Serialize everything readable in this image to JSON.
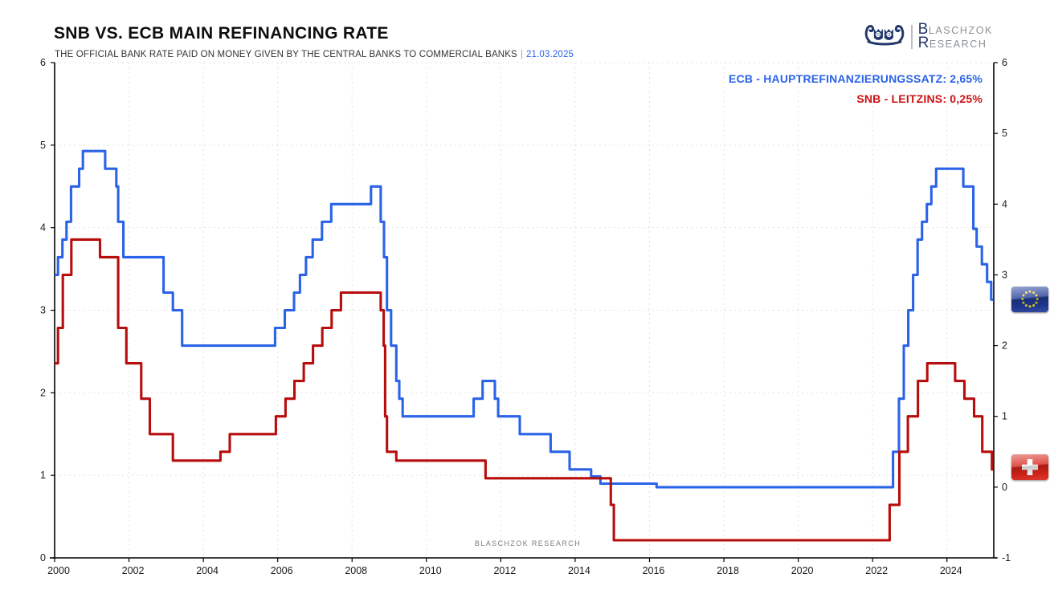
{
  "header": {
    "title": "SNB VS. ECB MAIN REFINANCING RATE",
    "subtitle": "THE OFFICIAL BANK RATE PAID ON MONEY GIVEN BY THE CENTRAL BANKS TO COMMERCIAL BANKS",
    "separator": "|",
    "date": "21.03.2025"
  },
  "logo": {
    "icon": "owl-ship-logo-icon",
    "line1_initial": "B",
    "line1_rest": "LASCHZOK",
    "line2_initial": "R",
    "line2_rest": "ESEARCH",
    "navy": "#21386b",
    "gray": "#8b9095"
  },
  "legend": {
    "ecb_label": "ECB - HAUPTREFINANZIERUNGSSATZ: 2,65%",
    "snb_label": "SNB - LEITZINS: 0,25%"
  },
  "watermark": "BLASCHZOK RESEARCH",
  "flags": {
    "eu": {
      "icon": "eu-flag-icon",
      "at_value": 2.65
    },
    "ch": {
      "icon": "swiss-flag-icon",
      "at_value": 0.25
    }
  },
  "chart_data": {
    "type": "line",
    "title": "SNB vs. ECB main refinancing rate (step chart, % p.a.)",
    "x_range": [
      2000,
      2025.25
    ],
    "x_ticks": [
      2000,
      2002,
      2004,
      2006,
      2008,
      2010,
      2012,
      2014,
      2016,
      2018,
      2020,
      2022,
      2024
    ],
    "left_axis": {
      "range": [
        0,
        6
      ],
      "ticks": [
        0,
        1,
        2,
        3,
        4,
        5,
        6
      ]
    },
    "right_axis": {
      "range": [
        -1,
        6
      ],
      "ticks": [
        -1,
        0,
        1,
        2,
        3,
        4,
        5,
        6
      ]
    },
    "grid": true,
    "grid_color": "#e2e2e2",
    "axis_color": "#000000",
    "tick_label_color": "#1a1a1a",
    "series": [
      {
        "id": "ecb",
        "name": "ECB - Hauptrefinanzierungssatz",
        "current_value": "2,65%",
        "color": "#2a63e8",
        "legend_color": "#2a63e8",
        "step_points": [
          [
            2000.0,
            3.0
          ],
          [
            2000.09,
            3.25
          ],
          [
            2000.21,
            3.5
          ],
          [
            2000.32,
            3.75
          ],
          [
            2000.44,
            4.25
          ],
          [
            2000.66,
            4.5
          ],
          [
            2000.76,
            4.75
          ],
          [
            2001.36,
            4.5
          ],
          [
            2001.66,
            4.25
          ],
          [
            2001.71,
            3.75
          ],
          [
            2001.85,
            3.25
          ],
          [
            2002.93,
            2.75
          ],
          [
            2003.18,
            2.5
          ],
          [
            2003.43,
            2.0
          ],
          [
            2005.93,
            2.25
          ],
          [
            2006.19,
            2.5
          ],
          [
            2006.44,
            2.75
          ],
          [
            2006.6,
            3.0
          ],
          [
            2006.76,
            3.25
          ],
          [
            2006.94,
            3.5
          ],
          [
            2007.19,
            3.75
          ],
          [
            2007.44,
            4.0
          ],
          [
            2008.51,
            4.25
          ],
          [
            2008.77,
            3.75
          ],
          [
            2008.86,
            3.25
          ],
          [
            2008.94,
            2.5
          ],
          [
            2009.05,
            2.0
          ],
          [
            2009.19,
            1.5
          ],
          [
            2009.27,
            1.25
          ],
          [
            2009.36,
            1.0
          ],
          [
            2011.27,
            1.25
          ],
          [
            2011.51,
            1.5
          ],
          [
            2011.84,
            1.25
          ],
          [
            2011.93,
            1.0
          ],
          [
            2012.51,
            0.75
          ],
          [
            2013.34,
            0.5
          ],
          [
            2013.85,
            0.25
          ],
          [
            2014.43,
            0.15
          ],
          [
            2014.68,
            0.05
          ],
          [
            2016.19,
            0.0
          ],
          [
            2022.55,
            0.5
          ],
          [
            2022.71,
            1.25
          ],
          [
            2022.84,
            2.0
          ],
          [
            2022.96,
            2.5
          ],
          [
            2023.09,
            3.0
          ],
          [
            2023.21,
            3.5
          ],
          [
            2023.33,
            3.75
          ],
          [
            2023.46,
            4.0
          ],
          [
            2023.58,
            4.25
          ],
          [
            2023.71,
            4.5
          ],
          [
            2024.44,
            4.25
          ],
          [
            2024.71,
            3.65
          ],
          [
            2024.8,
            3.4
          ],
          [
            2024.94,
            3.15
          ],
          [
            2025.08,
            2.9
          ],
          [
            2025.19,
            2.65
          ]
        ]
      },
      {
        "id": "snb",
        "name": "SNB - Leitzins",
        "current_value": "0,25%",
        "color": "#b80d0d",
        "legend_color": "#cb1111",
        "step_points": [
          [
            2000.0,
            1.75
          ],
          [
            2000.09,
            2.25
          ],
          [
            2000.22,
            3.0
          ],
          [
            2000.45,
            3.5
          ],
          [
            2001.22,
            3.25
          ],
          [
            2001.71,
            2.25
          ],
          [
            2001.93,
            1.75
          ],
          [
            2002.33,
            1.25
          ],
          [
            2002.56,
            0.75
          ],
          [
            2003.18,
            0.375
          ],
          [
            2004.46,
            0.5
          ],
          [
            2004.71,
            0.75
          ],
          [
            2005.95,
            1.0
          ],
          [
            2006.21,
            1.25
          ],
          [
            2006.45,
            1.5
          ],
          [
            2006.7,
            1.75
          ],
          [
            2006.95,
            2.0
          ],
          [
            2007.2,
            2.25
          ],
          [
            2007.45,
            2.5
          ],
          [
            2007.7,
            2.75
          ],
          [
            2008.77,
            2.5
          ],
          [
            2008.85,
            2.0
          ],
          [
            2008.89,
            1.0
          ],
          [
            2008.94,
            0.5
          ],
          [
            2009.19,
            0.375
          ],
          [
            2011.59,
            0.125
          ],
          [
            2014.96,
            -0.25
          ],
          [
            2015.04,
            -0.75
          ],
          [
            2022.46,
            -0.25
          ],
          [
            2022.72,
            0.5
          ],
          [
            2022.95,
            1.0
          ],
          [
            2023.22,
            1.5
          ],
          [
            2023.47,
            1.75
          ],
          [
            2024.22,
            1.5
          ],
          [
            2024.47,
            1.25
          ],
          [
            2024.73,
            1.0
          ],
          [
            2024.95,
            0.5
          ],
          [
            2025.21,
            0.25
          ]
        ]
      }
    ]
  }
}
